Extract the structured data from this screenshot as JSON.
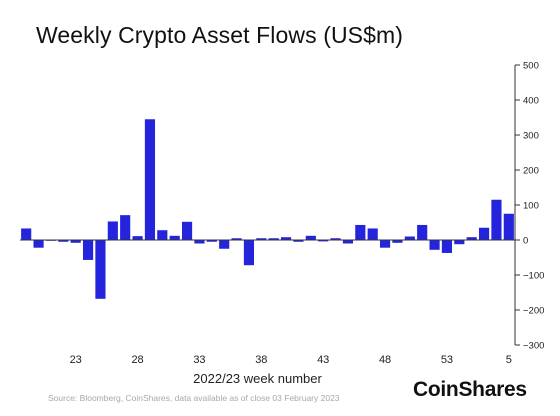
{
  "title": "Weekly Crypto Asset Flows (US$m)",
  "xlabel": "2022/23 week number",
  "source": "Source: Bloomberg, CoinShares, data available as of close 03 February 2023",
  "logo": "CoinShares",
  "colors": {
    "bar": "#2424dd",
    "axis": "#333333"
  },
  "chart_data": {
    "type": "bar",
    "title": "Weekly Crypto Asset Flows (US$m)",
    "xlabel": "2022/23 week number",
    "ylabel": "",
    "ylim": [
      -300,
      500
    ],
    "yticks": [
      500,
      400,
      300,
      200,
      100,
      0,
      -100,
      -200,
      -300
    ],
    "ytick_labels": [
      "500",
      "400",
      "300",
      "200",
      "100",
      "0",
      "−100",
      "−200",
      "−300"
    ],
    "y_axis_side": "right",
    "grid": false,
    "categories": [
      "19",
      "20",
      "21",
      "22",
      "23",
      "24",
      "25",
      "26",
      "27",
      "28",
      "29",
      "30",
      "31",
      "32",
      "33",
      "34",
      "35",
      "36",
      "37",
      "38",
      "39",
      "40",
      "41",
      "42",
      "43",
      "44",
      "45",
      "46",
      "47",
      "48",
      "49",
      "50",
      "51",
      "52",
      "53",
      "1",
      "2",
      "3",
      "4",
      "5"
    ],
    "values": [
      33,
      -22,
      0,
      -5,
      -8,
      -57,
      -168,
      53,
      71,
      11,
      345,
      28,
      12,
      52,
      -10,
      -5,
      -25,
      5,
      -72,
      5,
      5,
      8,
      -5,
      12,
      -4,
      5,
      -10,
      43,
      33,
      -22,
      -8,
      10,
      43,
      -28,
      -37,
      -12,
      8,
      35,
      115,
      75
    ],
    "xtick_labels": [
      {
        "category": "23",
        "label": "23"
      },
      {
        "category": "28",
        "label": "28"
      },
      {
        "category": "33",
        "label": "33"
      },
      {
        "category": "38",
        "label": "38"
      },
      {
        "category": "43",
        "label": "43"
      },
      {
        "category": "48",
        "label": "48"
      },
      {
        "category": "53",
        "label": "53"
      },
      {
        "category": "5",
        "label": "5"
      }
    ]
  }
}
